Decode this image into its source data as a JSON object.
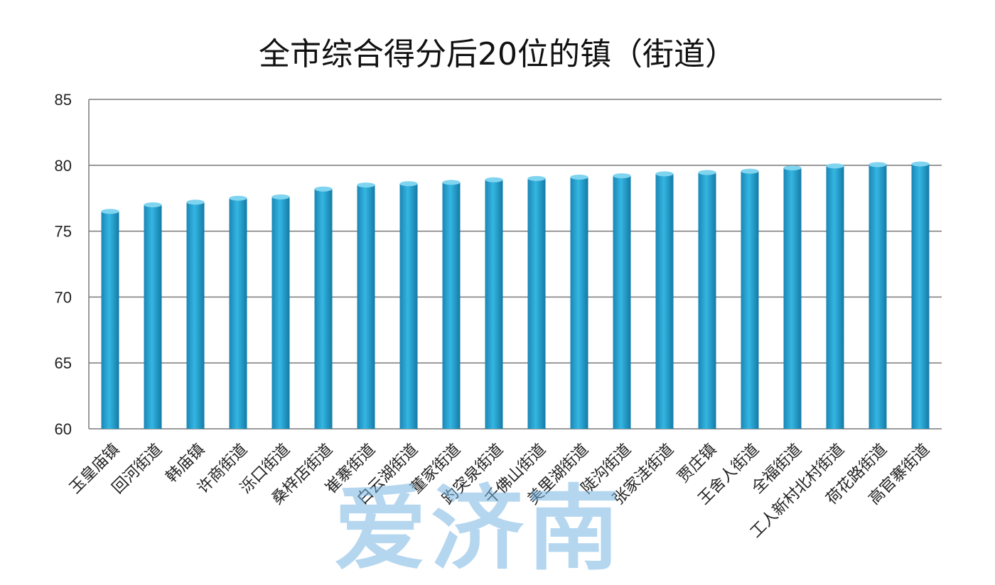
{
  "chart_data": {
    "type": "bar",
    "title": "全市综合得分后20位的镇（街道）",
    "xlabel": "",
    "ylabel": "",
    "ylim": [
      60,
      85
    ],
    "yticks": [
      60,
      65,
      70,
      75,
      80,
      85
    ],
    "grid": true,
    "categories": [
      "玉皇庙镇",
      "回河街道",
      "韩庙镇",
      "许商街道",
      "泺口街道",
      "桑梓店街道",
      "崔寨街道",
      "白云湖街道",
      "董家街道",
      "趵突泉街道",
      "千佛山街道",
      "美里湖街道",
      "陡沟街道",
      "张家洼街道",
      "贾庄镇",
      "王舍人街道",
      "全福街道",
      "工人新村北村街道",
      "荷花路街道",
      "高官寨街道"
    ],
    "values": [
      76.5,
      77.0,
      77.2,
      77.5,
      77.6,
      78.2,
      78.5,
      78.6,
      78.7,
      78.9,
      79.0,
      79.1,
      79.2,
      79.35,
      79.45,
      79.55,
      79.8,
      79.95,
      80.05,
      80.1
    ],
    "bar_color": "#2aa3cf",
    "bar_color_dark": "#1377a3"
  },
  "watermark": "爱济南"
}
